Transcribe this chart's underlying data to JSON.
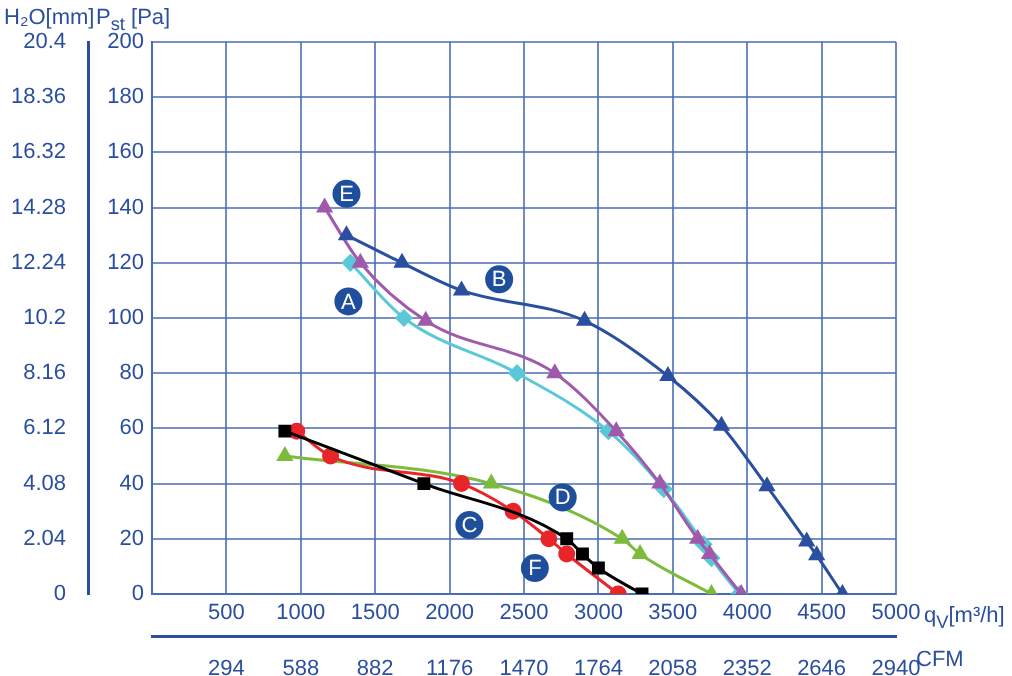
{
  "chart_data": {
    "type": "line",
    "xlabel": "q$_{V}$[m³/h]",
    "x2label": "CFM",
    "ylabel": "P$_{st}$ [Pa]",
    "y2label": "H₂O[mm]",
    "xlim": [
      0,
      5000
    ],
    "xticks": [
      {
        "value": 0,
        "label": null
      },
      500,
      1000,
      1500,
      2000,
      2500,
      3000,
      3500,
      4000,
      4500,
      5000
    ],
    "x2lim": [
      0,
      2940
    ],
    "x2ticks": [
      294,
      588,
      882,
      1176,
      1470,
      1764,
      2058,
      2352,
      2646,
      2940
    ],
    "ylim": [
      0,
      200
    ],
    "yticks": [
      0,
      20,
      40,
      60,
      80,
      100,
      120,
      140,
      160,
      180,
      200
    ],
    "y2lim": [
      0,
      20.4
    ],
    "y2ticks": [
      0,
      2.04,
      4.08,
      6.12,
      8.16,
      10.2,
      12.24,
      14.28,
      16.32,
      18.36,
      20.4
    ],
    "grid": true,
    "legend": false,
    "series": [
      {
        "color": "#2b4fa0",
        "marker": "triangle",
        "x": [
          1307,
          1680,
          2080,
          2907,
          3467,
          3827,
          4133,
          4400,
          4467,
          4640
        ],
        "values": [
          130,
          120,
          110,
          99,
          79,
          61,
          39,
          19,
          14,
          0
        ]
      },
      {
        "color": "#a05aab",
        "marker": "triangle",
        "x": [
          1160,
          1400,
          1840,
          2707,
          3120,
          3413,
          3667,
          3747,
          3960
        ],
        "values": [
          140,
          120,
          99,
          80,
          59,
          40,
          20,
          14.5,
          0
        ]
      },
      {
        "color": "#5bc8d8",
        "marker": "diamond",
        "x": [
          1333,
          1693,
          2453,
          3067,
          3440,
          3707,
          3760,
          3947
        ],
        "values": [
          120,
          100,
          80,
          59,
          38,
          18,
          13,
          0
        ]
      },
      {
        "color": "#000000",
        "marker": "square",
        "x": [
          893,
          1827,
          2787,
          2893,
          3000,
          3293
        ],
        "values": [
          59,
          40,
          20,
          14.5,
          9.4,
          0
        ]
      },
      {
        "color": "#e8262a",
        "marker": "circle",
        "x": [
          973,
          1200,
          2080,
          2427,
          2667,
          2787,
          3133
        ],
        "values": [
          59,
          50,
          40,
          30,
          20,
          14.5,
          0
        ]
      },
      {
        "color": "#7dbb3c",
        "marker": "triangle",
        "x": [
          893,
          2280,
          3160,
          3280,
          3760
        ],
        "values": [
          50,
          40,
          20,
          14.5,
          0
        ]
      }
    ],
    "annotations": [
      {
        "text": "E",
        "x": 1307,
        "y": 145
      },
      {
        "text": "B",
        "x": 2333,
        "y": 114
      },
      {
        "text": "A",
        "x": 1320,
        "y": 106
      },
      {
        "text": "D",
        "x": 2760,
        "y": 35
      },
      {
        "text": "C",
        "x": 2133,
        "y": 25
      },
      {
        "text": "F",
        "x": 2573,
        "y": 9.4
      }
    ]
  }
}
